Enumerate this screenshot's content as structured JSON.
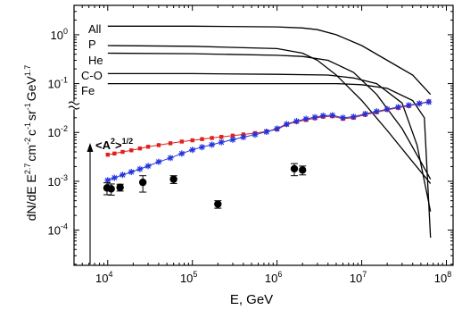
{
  "chart_data": {
    "type": "line",
    "xlabel": "E, GeV",
    "ylabel": "dN/dE E2.7 cm-2 c-1 sr-1 GeV1.7",
    "ylabel_parts": {
      "base": "dN/dE E",
      "exp1": "2.7",
      "u1": "cm",
      "e2": "-2",
      "u2": "c",
      "e3": "-1",
      "u3": "sr",
      "e4": "-1",
      "u4": "GeV",
      "e5": "1.7"
    },
    "x_scale": "log",
    "y_scale": "log",
    "xlim": [
      4000,
      120000000
    ],
    "ylim": [
      1.9e-05,
      4
    ],
    "x_ticks": [
      {
        "value": 10000,
        "base": "10",
        "exp": "4"
      },
      {
        "value": 100000,
        "base": "10",
        "exp": "5"
      },
      {
        "value": 1000000,
        "base": "10",
        "exp": "6"
      },
      {
        "value": 10000000,
        "base": "10",
        "exp": "7"
      },
      {
        "value": 100000000,
        "base": "10",
        "exp": "8"
      }
    ],
    "y_ticks": [
      {
        "value": 1,
        "base": "10",
        "exp": "0"
      },
      {
        "value": 0.1,
        "base": "10",
        "exp": "-1"
      },
      {
        "value": 0.01,
        "base": "10",
        "exp": "-2"
      },
      {
        "value": 0.001,
        "base": "10",
        "exp": "-3"
      },
      {
        "value": 0.0001,
        "base": "10",
        "exp": "-4"
      }
    ],
    "grid": false,
    "axis_break": "y",
    "curve_labels": [
      "All",
      "P",
      "He",
      "C-O",
      "Fe"
    ],
    "curves": [
      {
        "name": "All",
        "x": [
          10000,
          100000,
          1000000,
          2000000,
          3000000,
          5000000,
          10000000,
          20000000,
          40000000,
          65000000
        ],
        "y": [
          1.5,
          1.5,
          1.45,
          1.38,
          1.27,
          1.0,
          0.6,
          0.3,
          0.15,
          0.06
        ]
      },
      {
        "name": "P",
        "x": [
          10000,
          100000,
          1000000,
          2000000,
          3000000,
          5000000,
          10000000,
          20000000,
          40000000,
          65000000
        ],
        "y": [
          0.6,
          0.58,
          0.52,
          0.42,
          0.3,
          0.15,
          0.045,
          0.011,
          0.0025,
          0.0009
        ]
      },
      {
        "name": "He",
        "x": [
          10000,
          100000,
          1000000,
          2000000,
          4000000,
          8000000,
          15000000,
          30000000,
          50000000,
          65000000
        ],
        "y": [
          0.42,
          0.41,
          0.38,
          0.36,
          0.3,
          0.17,
          0.06,
          0.012,
          0.0025,
          0.0011
        ]
      },
      {
        "name": "C-O",
        "x": [
          10000,
          100000,
          1000000,
          4000000,
          8000000,
          15000000,
          30000000,
          45000000,
          65000000
        ],
        "y": [
          0.16,
          0.16,
          0.155,
          0.15,
          0.13,
          0.1,
          0.04,
          0.0055,
          0.00024
        ]
      },
      {
        "name": "Fe",
        "x": [
          10000,
          100000,
          1000000,
          5000000,
          10000000,
          20000000,
          40000000,
          55000000,
          65000000
        ],
        "y": [
          0.1,
          0.1,
          0.1,
          0.1,
          0.095,
          0.08,
          0.045,
          0.02,
          7e-05
        ]
      }
    ],
    "series": [
      {
        "name": "red-squares",
        "color": "#e02020",
        "marker": "square",
        "x": [
          10000,
          12000,
          15000,
          19000,
          24000,
          30000,
          40000,
          55000,
          75000,
          100000,
          130000,
          170000,
          220000,
          300000,
          400000,
          550000,
          750000,
          1000000,
          1300000,
          1700000,
          2200000,
          2800000,
          3500000,
          4500000,
          6000000,
          8000000,
          11000000,
          15000000,
          20000000,
          27000000,
          36000000,
          48000000,
          62000000
        ],
        "y": [
          0.0035,
          0.0037,
          0.004,
          0.0043,
          0.0047,
          0.0051,
          0.0055,
          0.006,
          0.0065,
          0.0069,
          0.0073,
          0.0077,
          0.0081,
          0.0086,
          0.0091,
          0.0097,
          0.0105,
          0.0115,
          0.0145,
          0.0165,
          0.018,
          0.0195,
          0.021,
          0.0215,
          0.019,
          0.02,
          0.023,
          0.026,
          0.029,
          0.032,
          0.035,
          0.039,
          0.043
        ]
      },
      {
        "name": "blue-stars",
        "color": "#2233dd",
        "marker": "star",
        "x": [
          10000,
          12000,
          15000,
          19000,
          24000,
          30000,
          40000,
          55000,
          75000,
          100000,
          130000,
          170000,
          220000,
          300000,
          400000,
          550000,
          750000,
          1000000,
          1300000,
          1700000,
          2200000,
          2800000,
          3500000,
          4500000,
          6000000,
          8000000,
          11000000,
          15000000,
          20000000,
          27000000,
          36000000,
          48000000,
          62000000
        ],
        "y": [
          0.00105,
          0.00118,
          0.00135,
          0.00155,
          0.00178,
          0.00205,
          0.0025,
          0.003,
          0.0037,
          0.0044,
          0.005,
          0.0056,
          0.0063,
          0.0071,
          0.008,
          0.009,
          0.0103,
          0.012,
          0.0148,
          0.017,
          0.019,
          0.0205,
          0.022,
          0.0225,
          0.02,
          0.021,
          0.024,
          0.027,
          0.03,
          0.033,
          0.036,
          0.039,
          0.042
        ]
      },
      {
        "name": "black-points",
        "color": "#000000",
        "marker": "circle",
        "x": [
          9800,
          11000,
          14000,
          26000,
          60000,
          200000,
          1600000,
          2000000
        ],
        "y": [
          0.00073,
          0.0007,
          0.00075,
          0.00095,
          0.0011,
          0.00034,
          0.0018,
          0.0017
        ],
        "yerr_low": [
          0.0002,
          0.00018,
          0.00012,
          0.00035,
          0.0002,
          6e-05,
          0.0005,
          0.00035
        ],
        "yerr_high": [
          0.0002,
          0.00018,
          0.00012,
          0.00035,
          0.0002,
          6e-05,
          0.0005,
          0.00035
        ]
      }
    ],
    "annotation": {
      "text": "<A",
      "sup_inner": "2",
      "close": ">",
      "sup_outer": "1/2"
    }
  }
}
